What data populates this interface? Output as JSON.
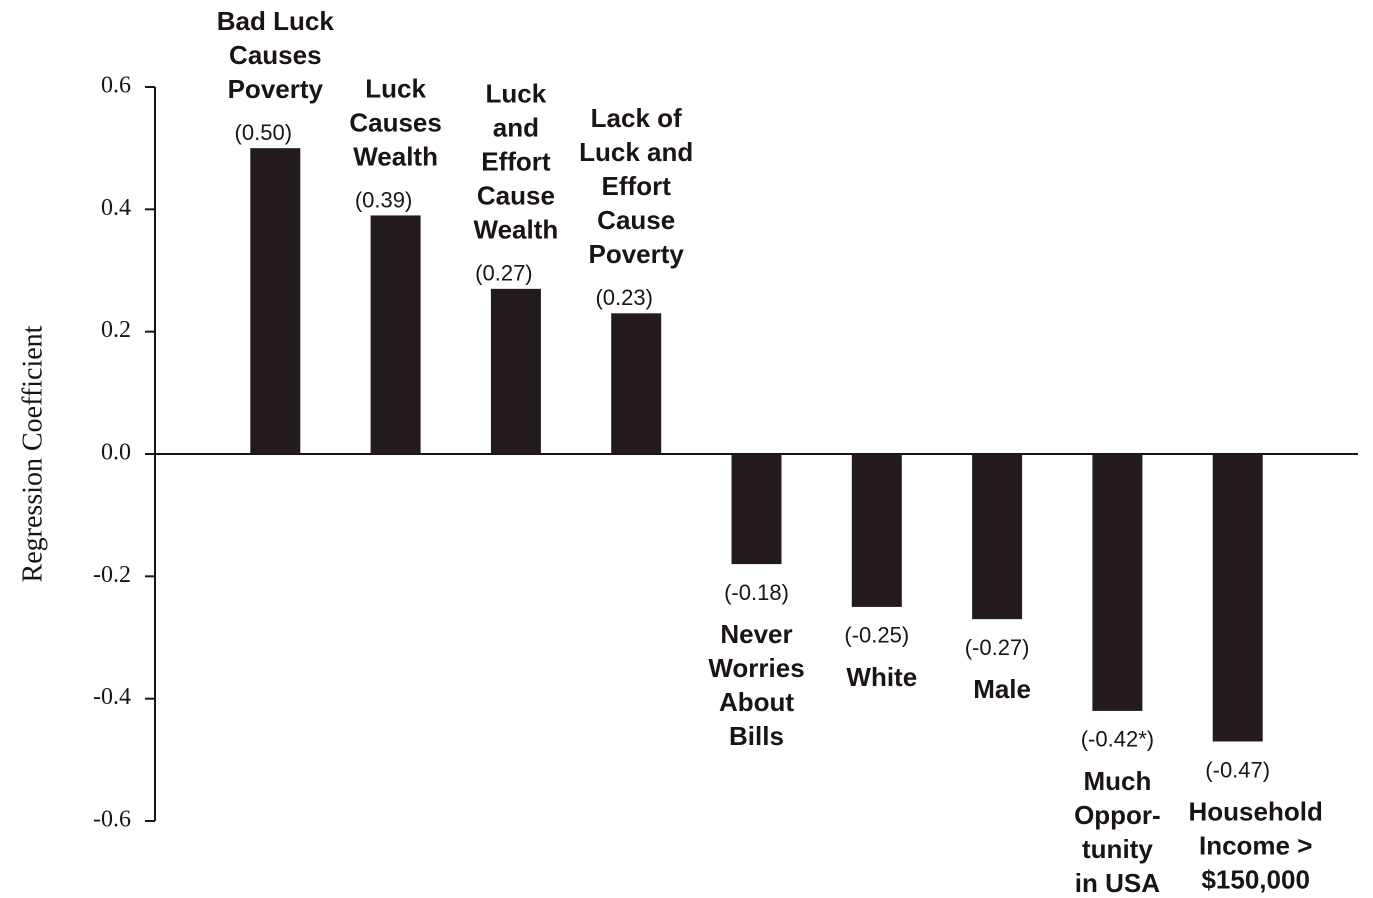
{
  "chart_data": {
    "type": "bar",
    "y_label": "Regression Coefficient",
    "categories": [
      [
        "Bad Luck",
        "Causes",
        "Poverty"
      ],
      [
        "Luck",
        "Causes",
        "Wealth"
      ],
      [
        "Luck",
        "and",
        "Effort",
        "Cause",
        "Wealth"
      ],
      [
        "Lack of",
        "Luck and",
        "Effort",
        "Cause",
        "Poverty"
      ],
      [
        "Never",
        "Worries",
        "About",
        "Bills"
      ],
      [
        "White"
      ],
      [
        "Male"
      ],
      [
        "Much",
        "Oppor-",
        "tunity",
        "in USA"
      ],
      [
        "Household",
        "Income >",
        "$150,000"
      ]
    ],
    "values": [
      0.5,
      0.39,
      0.27,
      0.23,
      -0.18,
      -0.25,
      -0.27,
      -0.42,
      -0.47
    ],
    "value_labels": [
      "(0.50)",
      "(0.39)",
      "(0.27)",
      "(0.23)",
      "(-0.18)",
      "(-0.25)",
      "(-0.27)",
      "(-0.42*)",
      "(-0.47)"
    ],
    "color": "#231b1b",
    "ylim": [
      -0.6,
      0.6
    ],
    "yticks": [
      0.6,
      0.4,
      0.2,
      {
        "value": 0,
        "label": "0.0"
      },
      -0.2,
      -0.4,
      -0.6
    ]
  }
}
